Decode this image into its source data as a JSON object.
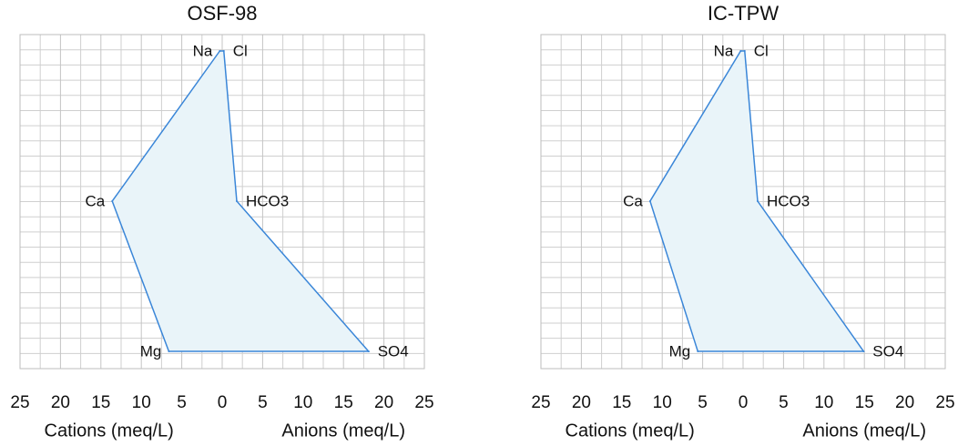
{
  "chart_data": [
    {
      "type": "stiff",
      "title": "OSF-98",
      "rows": [
        {
          "cation": "Na",
          "cation_value": 0.3,
          "anion": "Cl",
          "anion_value": 0.2
        },
        {
          "cation": "Ca",
          "cation_value": 13.6,
          "anion": "HCO3",
          "anion_value": 1.8
        },
        {
          "cation": "Mg",
          "cation_value": 6.6,
          "anion": "SO4",
          "anion_value": 18.1
        }
      ],
      "xlabel_cations": "Cations (meq/L)",
      "xlabel_anions": "Anions (meq/L)",
      "xlim": [
        -25,
        25
      ],
      "xticks": [
        {
          "value": -25,
          "label": "25"
        },
        {
          "value": -20,
          "label": "20"
        },
        {
          "value": -15,
          "label": "15"
        },
        {
          "value": -10,
          "label": "10"
        },
        {
          "value": -5,
          "label": "5"
        },
        0,
        5,
        10,
        15,
        20,
        25
      ],
      "color": "#3a86d8",
      "fill": "#e9f4f9",
      "grid": true
    },
    {
      "type": "stiff",
      "title": "IC-TPW",
      "rows": [
        {
          "cation": "Na",
          "cation_value": 0.3,
          "anion": "Cl",
          "anion_value": 0.2
        },
        {
          "cation": "Ca",
          "cation_value": 11.5,
          "anion": "HCO3",
          "anion_value": 1.8
        },
        {
          "cation": "Mg",
          "cation_value": 5.6,
          "anion": "SO4",
          "anion_value": 14.9
        }
      ],
      "xlabel_cations": "Cations (meq/L)",
      "xlabel_anions": "Anions (meq/L)",
      "xlim": [
        -25,
        25
      ],
      "xticks": [
        {
          "value": -25,
          "label": "25"
        },
        {
          "value": -20,
          "label": "20"
        },
        {
          "value": -15,
          "label": "15"
        },
        {
          "value": -10,
          "label": "10"
        },
        {
          "value": -5,
          "label": "5"
        },
        0,
        5,
        10,
        15,
        20,
        25
      ],
      "color": "#3a86d8",
      "fill": "#e9f4f9",
      "grid": true
    }
  ]
}
